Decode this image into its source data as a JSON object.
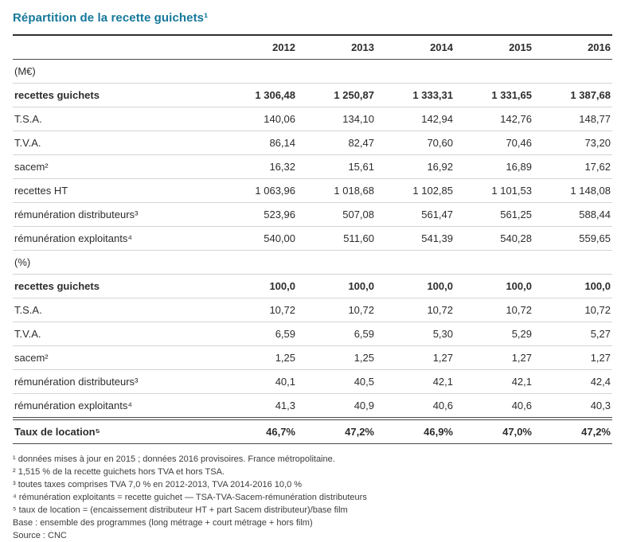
{
  "title": "Répartition de la recette guichets¹",
  "accent_color": "#15789a",
  "table": {
    "years": [
      "2012",
      "2013",
      "2014",
      "2015",
      "2016"
    ],
    "sections": [
      {
        "header": "(M€)",
        "rows": [
          {
            "label": "recettes guichets",
            "bold": true,
            "values": [
              "1 306,48",
              "1 250,87",
              "1 333,31",
              "1 331,65",
              "1 387,68"
            ]
          },
          {
            "label": "T.S.A.",
            "bold": false,
            "values": [
              "140,06",
              "134,10",
              "142,94",
              "142,76",
              "148,77"
            ]
          },
          {
            "label": "T.V.A.",
            "bold": false,
            "values": [
              "86,14",
              "82,47",
              "70,60",
              "70,46",
              "73,20"
            ]
          },
          {
            "label": "sacem²",
            "bold": false,
            "values": [
              "16,32",
              "15,61",
              "16,92",
              "16,89",
              "17,62"
            ]
          },
          {
            "label": "recettes HT",
            "bold": false,
            "values": [
              "1 063,96",
              "1 018,68",
              "1 102,85",
              "1 101,53",
              "1 148,08"
            ]
          },
          {
            "label": "rémunération distributeurs³",
            "bold": false,
            "values": [
              "523,96",
              "507,08",
              "561,47",
              "561,25",
              "588,44"
            ]
          },
          {
            "label": "rémunération exploitants⁴",
            "bold": false,
            "values": [
              "540,00",
              "511,60",
              "541,39",
              "540,28",
              "559,65"
            ]
          }
        ]
      },
      {
        "header": "(%)",
        "rows": [
          {
            "label": "recettes guichets",
            "bold": true,
            "values": [
              "100,0",
              "100,0",
              "100,0",
              "100,0",
              "100,0"
            ]
          },
          {
            "label": "T.S.A.",
            "bold": false,
            "values": [
              "10,72",
              "10,72",
              "10,72",
              "10,72",
              "10,72"
            ]
          },
          {
            "label": "T.V.A.",
            "bold": false,
            "values": [
              "6,59",
              "6,59",
              "5,30",
              "5,29",
              "5,27"
            ]
          },
          {
            "label": "sacem²",
            "bold": false,
            "values": [
              "1,25",
              "1,25",
              "1,27",
              "1,27",
              "1,27"
            ]
          },
          {
            "label": "rémunération distributeurs³",
            "bold": false,
            "values": [
              "40,1",
              "40,5",
              "42,1",
              "42,1",
              "42,4"
            ]
          },
          {
            "label": "rémunération exploitants⁴",
            "bold": false,
            "values": [
              "41,3",
              "40,9",
              "40,6",
              "40,6",
              "40,3"
            ]
          }
        ]
      }
    ],
    "total_row": {
      "label": "Taux de location⁵",
      "bold": true,
      "values": [
        "46,7%",
        "47,2%",
        "46,9%",
        "47,0%",
        "47,2%"
      ]
    }
  },
  "notes": {
    "footnotes": [
      "¹ données mises à jour en 2015 ; données 2016 provisoires. France métropolitaine.",
      "² 1,515 % de la recette guichets hors TVA et hors TSA.",
      "³ toutes taxes comprises TVA 7,0 % en 2012-2013, TVA 2014-2016 10,0 %",
      "⁴ rémunération exploitants = recette guichet — TSA-TVA-Sacem-rémunération distributeurs",
      "⁵ taux de location = (encaissement distributeur HT + part Sacem distributeur)/base film"
    ],
    "base": "Base : ensemble des programmes (long métrage + court métrage + hors film)",
    "source": "Source : CNC"
  }
}
